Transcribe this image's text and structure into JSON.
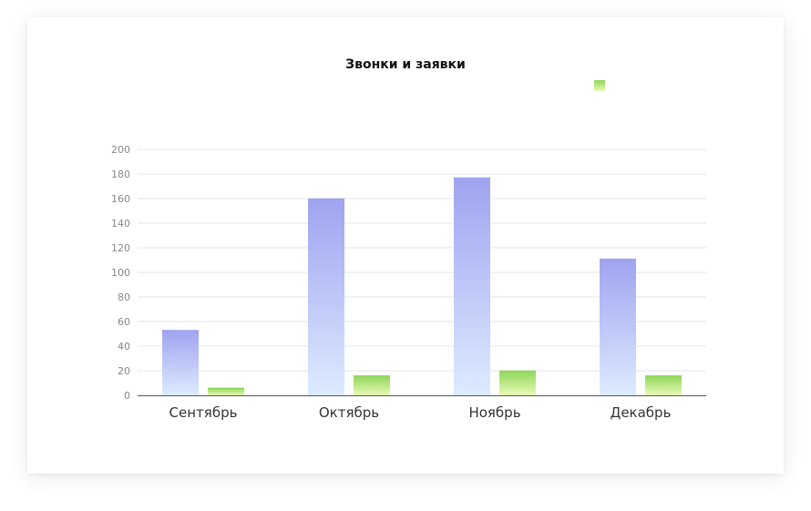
{
  "chart_data": {
    "type": "bar",
    "title": "Звонки и заявки",
    "categories": [
      "Сентябрь",
      "Октябрь",
      "Ноябрь",
      "Декабрь"
    ],
    "series": [
      {
        "color_top": "#9fa3ef",
        "color_bottom": "#dcebff",
        "values": [
          53,
          160,
          177,
          111
        ]
      },
      {
        "color_top": "#8fd65a",
        "color_bottom": "#e8fab5",
        "values": [
          6,
          16,
          20,
          16
        ]
      }
    ],
    "ylim": [
      0,
      200
    ],
    "yticks": [
      "0",
      "20",
      "40",
      "60",
      "80",
      "100",
      "120",
      "140",
      "160",
      "180",
      "200"
    ],
    "grid": true,
    "legend_position": "top-right"
  }
}
